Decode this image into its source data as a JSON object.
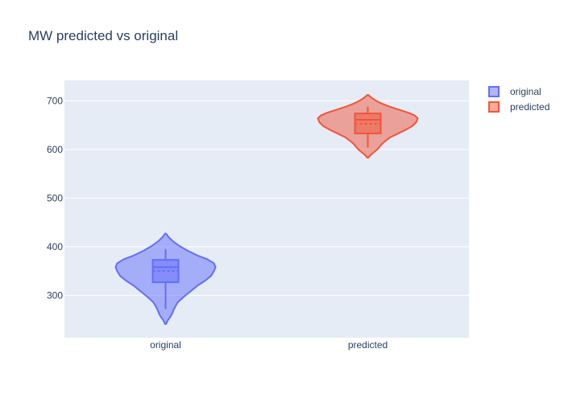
{
  "chart_data": {
    "type": "violin",
    "title": "MW predicted vs original",
    "xlabel": "",
    "ylabel": "",
    "categories": [
      "original",
      "predicted"
    ],
    "ylim": [
      213,
      742
    ],
    "yticks": [
      300,
      400,
      500,
      600,
      700
    ],
    "grid": true,
    "legend_position": "top-right",
    "series": [
      {
        "name": "original",
        "color": "#636efa",
        "fill": "rgba(99,110,250,0.5)",
        "min": 272,
        "q1": 327,
        "median": 358,
        "mean": 350,
        "q3": 373,
        "max": 395,
        "kde_min": 241,
        "kde_max": 427,
        "density": [
          [
            241,
            0.01
          ],
          [
            248,
            0.04
          ],
          [
            255,
            0.09
          ],
          [
            262,
            0.13
          ],
          [
            270,
            0.16
          ],
          [
            278,
            0.2
          ],
          [
            285,
            0.24
          ],
          [
            292,
            0.31
          ],
          [
            300,
            0.4
          ],
          [
            310,
            0.52
          ],
          [
            320,
            0.64
          ],
          [
            330,
            0.79
          ],
          [
            340,
            0.91
          ],
          [
            350,
            0.97
          ],
          [
            358,
            1.0
          ],
          [
            366,
            0.97
          ],
          [
            374,
            0.84
          ],
          [
            382,
            0.64
          ],
          [
            392,
            0.44
          ],
          [
            402,
            0.27
          ],
          [
            412,
            0.14
          ],
          [
            420,
            0.06
          ],
          [
            427,
            0.01
          ]
        ]
      },
      {
        "name": "predicted",
        "color": "#ef553b",
        "fill": "rgba(239,85,59,0.5)",
        "min": 604,
        "q1": 633,
        "median": 661,
        "mean": 653,
        "q3": 674,
        "max": 688,
        "kde_min": 583,
        "kde_max": 712,
        "density": [
          [
            583,
            0.01
          ],
          [
            588,
            0.05
          ],
          [
            594,
            0.12
          ],
          [
            600,
            0.19
          ],
          [
            606,
            0.24
          ],
          [
            612,
            0.29
          ],
          [
            618,
            0.36
          ],
          [
            625,
            0.45
          ],
          [
            632,
            0.59
          ],
          [
            640,
            0.75
          ],
          [
            648,
            0.89
          ],
          [
            656,
            0.97
          ],
          [
            664,
            1.0
          ],
          [
            670,
            0.94
          ],
          [
            676,
            0.8
          ],
          [
            682,
            0.62
          ],
          [
            688,
            0.44
          ],
          [
            694,
            0.29
          ],
          [
            700,
            0.17
          ],
          [
            706,
            0.08
          ],
          [
            712,
            0.01
          ]
        ]
      }
    ]
  }
}
